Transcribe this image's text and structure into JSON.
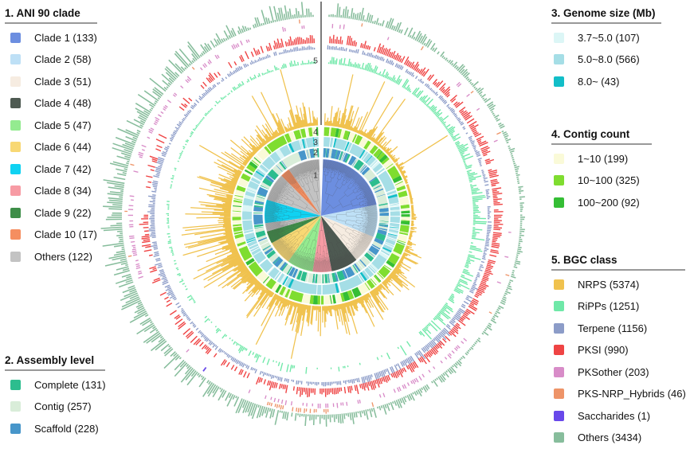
{
  "figure": {
    "background": "#ffffff"
  },
  "axis": {
    "ring_labels": [
      "1",
      "2",
      "3",
      "4",
      "5"
    ]
  },
  "legends": [
    {
      "id": "ani90-clade",
      "title": "1. ANI 90 clade",
      "items": [
        {
          "text": "Clade 1 (133)",
          "label": "Clade 1",
          "count": 133,
          "color": "#6C8EE0"
        },
        {
          "text": "Clade 2 (58)",
          "label": "Clade 2",
          "count": 58,
          "color": "#BEE0F6"
        },
        {
          "text": "Clade 3 (51)",
          "label": "Clade 3",
          "count": 51,
          "color": "#F6ECE1"
        },
        {
          "text": "Clade 4 (48)",
          "label": "Clade 4",
          "count": 48,
          "color": "#4E5A52"
        },
        {
          "text": "Clade 5 (47)",
          "label": "Clade 5",
          "count": 47,
          "color": "#94EB90"
        },
        {
          "text": "Clade 6 (44)",
          "label": "Clade 6",
          "count": 44,
          "color": "#F8D874"
        },
        {
          "text": "Clade 7 (42)",
          "label": "Clade 7",
          "count": 42,
          "color": "#10D2F2"
        },
        {
          "text": "Clade 8 (34)",
          "label": "Clade 8",
          "count": 34,
          "color": "#F79BA4"
        },
        {
          "text": "Clade 9 (22)",
          "label": "Clade 9",
          "count": 22,
          "color": "#3E8E48"
        },
        {
          "text": "Clade 10 (17)",
          "label": "Clade 10",
          "count": 17,
          "color": "#F58E60"
        },
        {
          "text": "Others (122)",
          "label": "Others",
          "count": 122,
          "color": "#C3C3C3"
        }
      ]
    },
    {
      "id": "assembly-level",
      "title": "2. Assembly level",
      "items": [
        {
          "text": "Complete (131)",
          "label": "Complete",
          "count": 131,
          "color": "#2CBD8E"
        },
        {
          "text": "Contig (257)",
          "label": "Contig",
          "count": 257,
          "color": "#D9EDD9"
        },
        {
          "text": "Scaffold (228)",
          "label": "Scaffold",
          "count": 228,
          "color": "#4796CA"
        }
      ]
    },
    {
      "id": "genome-size",
      "title": "3. Genome size (Mb)",
      "items": [
        {
          "text": "3.7~5.0 (107)",
          "label": "3.7~5.0",
          "count": 107,
          "color": "#DCF6F6"
        },
        {
          "text": "5.0~8.0 (566)",
          "label": "5.0~8.0",
          "count": 566,
          "color": "#A5DEE6"
        },
        {
          "text": "8.0~ (43)",
          "label": "8.0~",
          "count": 43,
          "color": "#12BEC8"
        }
      ]
    },
    {
      "id": "contig-count",
      "title": "4. Contig count",
      "items": [
        {
          "text": "1~10 (199)",
          "label": "1~10",
          "count": 199,
          "color": "#FAFAD8"
        },
        {
          "text": "10~100 (325)",
          "label": "10~100",
          "count": 325,
          "color": "#7FDD30"
        },
        {
          "text": "100~200 (92)",
          "label": "100~200",
          "count": 92,
          "color": "#35BE35"
        }
      ]
    },
    {
      "id": "bgc-class",
      "title": "5. BGC class",
      "items": [
        {
          "text": "NRPS (5374)",
          "label": "NRPS",
          "count": 5374,
          "color": "#F0C24E"
        },
        {
          "text": "RiPPs (1251)",
          "label": "RiPPs",
          "count": 1251,
          "color": "#6FE8A8"
        },
        {
          "text": "Terpene (1156)",
          "label": "Terpene",
          "count": 1156,
          "color": "#8C9CC8"
        },
        {
          "text": "PKSI (990)",
          "label": "PKSI",
          "count": 990,
          "color": "#EF4444"
        },
        {
          "text": "PKSother (203)",
          "label": "PKSother",
          "count": 203,
          "color": "#D88CC8"
        },
        {
          "text": "PKS-NRP_Hybrids (46)",
          "label": "PKS-NRP_Hybrids",
          "count": 46,
          "color": "#EE9468"
        },
        {
          "text": "Saccharides (1)",
          "label": "Saccharides",
          "count": 1,
          "color": "#6848EA"
        },
        {
          "text": "Others (3434)",
          "label": "Others",
          "count": 3434,
          "color": "#87BD9C"
        }
      ]
    }
  ],
  "chart_data": {
    "type": "circular_phylogenetic_tree",
    "title": "",
    "center_gap_degrees": 4,
    "rings": [
      {
        "position": 1,
        "label": "1",
        "title": "ANI 90 clade",
        "render": "clade_wedges_with_dendrogram"
      },
      {
        "position": 2,
        "label": "2",
        "title": "Assembly level",
        "render": "categorical_band",
        "categories": [
          {
            "name": "Complete",
            "count": 131,
            "color": "#2CBD8E"
          },
          {
            "name": "Contig",
            "count": 257,
            "color": "#D9EDD9"
          },
          {
            "name": "Scaffold",
            "count": 228,
            "color": "#4796CA"
          }
        ]
      },
      {
        "position": 3,
        "label": "3",
        "title": "Genome size (Mb)",
        "render": "categorical_band",
        "categories": [
          {
            "name": "3.7~5.0",
            "count": 107,
            "color": "#DCF6F6"
          },
          {
            "name": "5.0~8.0",
            "count": 566,
            "color": "#A5DEE6"
          },
          {
            "name": "8.0~",
            "count": 43,
            "color": "#12BEC8"
          }
        ]
      },
      {
        "position": 4,
        "label": "4",
        "title": "Contig count",
        "render": "categorical_band",
        "categories": [
          {
            "name": "1~10",
            "count": 199,
            "color": "#FAFAD8"
          },
          {
            "name": "10~100",
            "count": 325,
            "color": "#7FDD30"
          },
          {
            "name": "100~200",
            "count": 92,
            "color": "#35BE35"
          }
        ]
      },
      {
        "position": 5,
        "label": "5",
        "title": "BGC class",
        "render": "radial_bar_rings",
        "series": [
          {
            "name": "NRPS",
            "count": 5374,
            "color": "#F0C24E"
          },
          {
            "name": "RiPPs",
            "count": 1251,
            "color": "#6FE8A8"
          },
          {
            "name": "Terpene",
            "count": 1156,
            "color": "#8C9CC8"
          },
          {
            "name": "PKSI",
            "count": 990,
            "color": "#EF4444"
          },
          {
            "name": "PKSother",
            "count": 203,
            "color": "#D88CC8"
          },
          {
            "name": "PKS-NRP_Hybrids",
            "count": 46,
            "color": "#EE9468"
          },
          {
            "name": "Saccharides",
            "count": 1,
            "color": "#6848EA"
          },
          {
            "name": "Others",
            "count": 3434,
            "color": "#87BD9C"
          }
        ]
      }
    ],
    "clade_arcs": [
      {
        "label": "Clade 1",
        "count": 133,
        "color": "#6C8EE0"
      },
      {
        "label": "Clade 2",
        "count": 58,
        "color": "#BEE0F6"
      },
      {
        "label": "Clade 3",
        "count": 51,
        "color": "#F6ECE1"
      },
      {
        "label": "Clade 4",
        "count": 48,
        "color": "#4E5A52"
      },
      {
        "label": "Clade 8",
        "count": 34,
        "color": "#F79BA4"
      },
      {
        "label": "Clade 5",
        "count": 47,
        "color": "#94EB90"
      },
      {
        "label": "Clade 6",
        "count": 44,
        "color": "#F8D874"
      },
      {
        "label": "Clade 9",
        "count": 22,
        "color": "#3E8E48"
      },
      {
        "label": "Others",
        "count": 15,
        "color": "#C3C3C3"
      },
      {
        "label": "Clade 7",
        "count": 42,
        "color": "#10D2F2"
      },
      {
        "label": "Others",
        "count": 50,
        "color": "#C3C3C3"
      },
      {
        "label": "Clade 10",
        "count": 17,
        "color": "#F58E60"
      },
      {
        "label": "Others",
        "count": 57,
        "color": "#C3C3C3"
      }
    ]
  }
}
